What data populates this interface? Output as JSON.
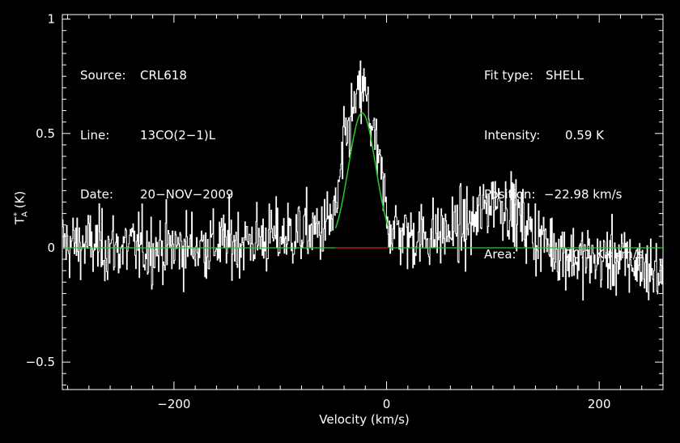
{
  "chart_data": {
    "type": "line",
    "xlabel": "Velocity (km/s)",
    "ylabel": "T",
    "ylabel_sub": "A",
    "ylabel_sup": "*",
    "ylabel_unit": "(K)",
    "xlim": [
      -305,
      260
    ],
    "ylim": [
      -0.62,
      1.02
    ],
    "xticks": [
      -200,
      0,
      200
    ],
    "xtick_labels": [
      "−200",
      "0",
      "200"
    ],
    "yticks": [
      1,
      0.5,
      0,
      -0.5
    ],
    "ytick_labels": [
      "1",
      "0.5",
      "0",
      "−0.5"
    ],
    "fit": {
      "type": "gaussian",
      "amplitude": 0.59,
      "center": -22.98,
      "width_fwhm": 30,
      "window": [
        -48,
        2
      ]
    },
    "spectrum_envelope": {
      "x": [
        -305,
        -250,
        -200,
        -150,
        -100,
        -60,
        -48,
        -40,
        -30,
        -22,
        -15,
        -5,
        2,
        20,
        50,
        80,
        100,
        115,
        140,
        180,
        220,
        260
      ],
      "y": [
        0.02,
        0.0,
        0.0,
        0.02,
        0.05,
        0.08,
        0.15,
        0.45,
        0.62,
        0.7,
        0.55,
        0.3,
        0.1,
        0.05,
        0.06,
        0.1,
        0.22,
        0.18,
        0.05,
        -0.05,
        -0.05,
        -0.12
      ]
    },
    "noise_rms": 0.12,
    "series": [
      {
        "name": "spectrum",
        "color": "#ffffff"
      },
      {
        "name": "fit",
        "color": "#22cc22"
      },
      {
        "name": "baseline",
        "color": "#cc2222"
      }
    ]
  },
  "info_left": [
    {
      "key": "Source:",
      "value": "CRL618"
    },
    {
      "key": "Line:",
      "value": "13CO(2−1)L"
    },
    {
      "key": "Date:",
      "value": "20−NOV−2009"
    }
  ],
  "info_right": [
    {
      "key": "Fit type:",
      "value": "SHELL"
    },
    {
      "key": "Intensity:",
      "value": "0.59 K"
    },
    {
      "key": "Position:",
      "value": "−22.98 km/s"
    },
    {
      "key": "Area:",
      "value": "20.1 K∗km/s"
    }
  ]
}
